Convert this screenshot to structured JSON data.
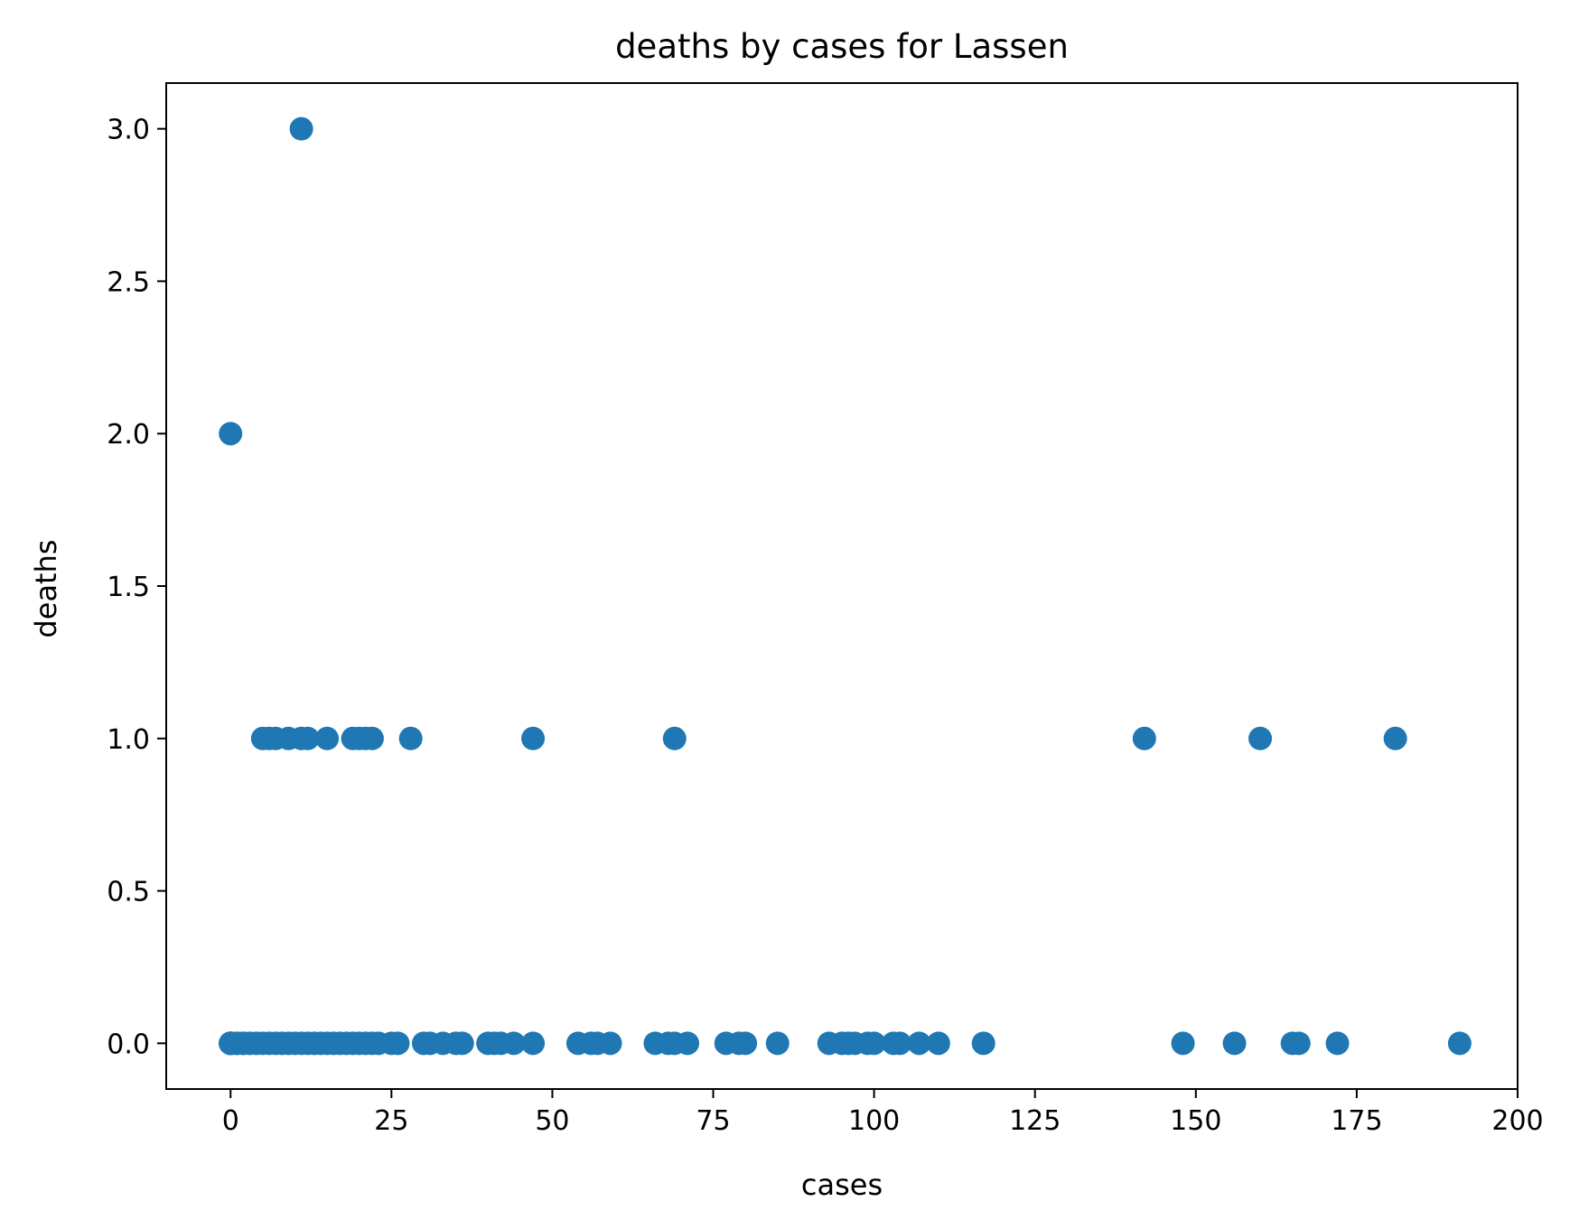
{
  "chart_data": {
    "type": "scatter",
    "title": "deaths by cases for Lassen",
    "xlabel": "cases",
    "ylabel": "deaths",
    "xlim": [
      -10,
      200
    ],
    "ylim": [
      -0.15,
      3.15
    ],
    "x_ticks": [
      0,
      25,
      50,
      75,
      100,
      125,
      150,
      175,
      200
    ],
    "x_tick_labels": [
      "0",
      "25",
      "50",
      "75",
      "100",
      "125",
      "150",
      "175",
      "200"
    ],
    "y_ticks": [
      0.0,
      0.5,
      1.0,
      1.5,
      2.0,
      2.5,
      3.0
    ],
    "y_tick_labels": [
      "0.0",
      "0.5",
      "1.0",
      "1.5",
      "2.0",
      "2.5",
      "3.0"
    ],
    "grid": false,
    "marker_color": "#1f77b4",
    "points": [
      [
        0,
        0
      ],
      [
        0,
        0
      ],
      [
        0,
        0
      ],
      [
        0,
        0
      ],
      [
        0,
        0
      ],
      [
        0,
        0
      ],
      [
        0,
        0
      ],
      [
        0,
        0
      ],
      [
        1,
        0
      ],
      [
        1,
        0
      ],
      [
        2,
        0
      ],
      [
        2,
        0
      ],
      [
        3,
        0
      ],
      [
        4,
        0
      ],
      [
        5,
        0
      ],
      [
        6,
        0
      ],
      [
        7,
        0
      ],
      [
        8,
        0
      ],
      [
        9,
        0
      ],
      [
        10,
        0
      ],
      [
        11,
        0
      ],
      [
        12,
        0
      ],
      [
        13,
        0
      ],
      [
        14,
        0
      ],
      [
        15,
        0
      ],
      [
        16,
        0
      ],
      [
        17,
        0
      ],
      [
        18,
        0
      ],
      [
        19,
        0
      ],
      [
        20,
        0
      ],
      [
        21,
        0
      ],
      [
        22,
        0
      ],
      [
        23,
        0
      ],
      [
        25,
        0
      ],
      [
        26,
        0
      ],
      [
        30,
        0
      ],
      [
        31,
        0
      ],
      [
        33,
        0
      ],
      [
        35,
        0
      ],
      [
        36,
        0
      ],
      [
        40,
        0
      ],
      [
        41,
        0
      ],
      [
        42,
        0
      ],
      [
        44,
        0
      ],
      [
        47,
        0
      ],
      [
        54,
        0
      ],
      [
        56,
        0
      ],
      [
        57,
        0
      ],
      [
        59,
        0
      ],
      [
        66,
        0
      ],
      [
        68,
        0
      ],
      [
        69,
        0
      ],
      [
        71,
        0
      ],
      [
        77,
        0
      ],
      [
        79,
        0
      ],
      [
        80,
        0
      ],
      [
        85,
        0
      ],
      [
        93,
        0
      ],
      [
        95,
        0
      ],
      [
        96,
        0
      ],
      [
        97,
        0
      ],
      [
        99,
        0
      ],
      [
        100,
        0
      ],
      [
        103,
        0
      ],
      [
        104,
        0
      ],
      [
        107,
        0
      ],
      [
        110,
        0
      ],
      [
        117,
        0
      ],
      [
        148,
        0
      ],
      [
        156,
        0
      ],
      [
        165,
        0
      ],
      [
        166,
        0
      ],
      [
        172,
        0
      ],
      [
        191,
        0
      ],
      [
        5,
        1
      ],
      [
        6,
        1
      ],
      [
        7,
        1
      ],
      [
        9,
        1
      ],
      [
        11,
        1
      ],
      [
        12,
        1
      ],
      [
        15,
        1
      ],
      [
        19,
        1
      ],
      [
        20,
        1
      ],
      [
        21,
        1
      ],
      [
        22,
        1
      ],
      [
        28,
        1
      ],
      [
        47,
        1
      ],
      [
        69,
        1
      ],
      [
        142,
        1
      ],
      [
        160,
        1
      ],
      [
        181,
        1
      ],
      [
        0,
        2
      ],
      [
        11,
        3
      ]
    ]
  }
}
